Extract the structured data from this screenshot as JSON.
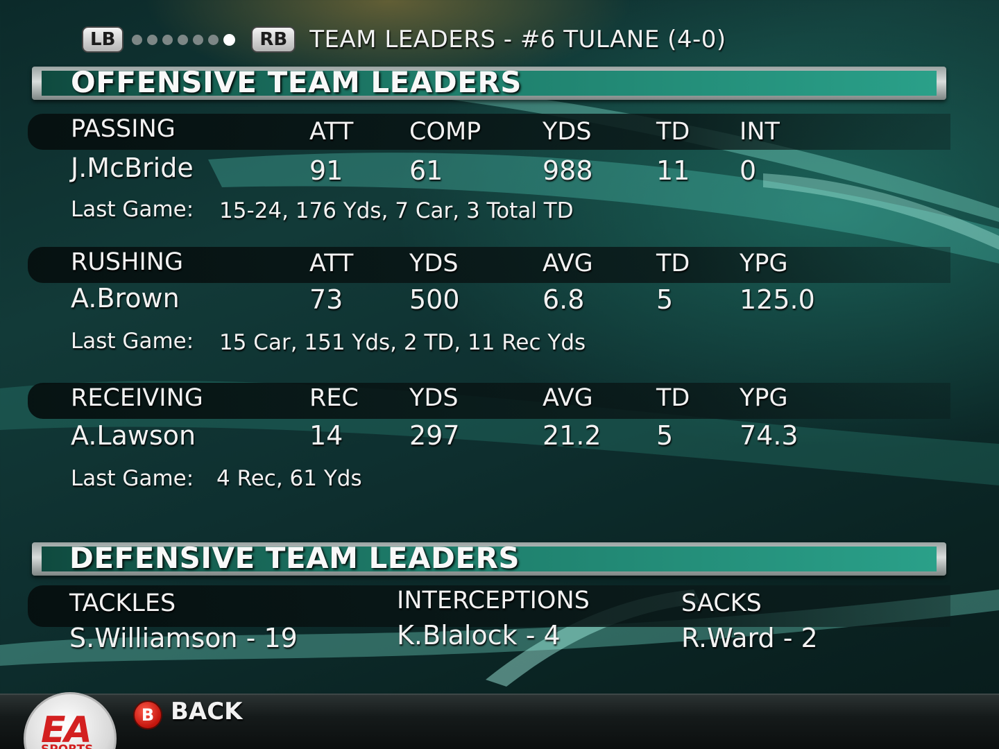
{
  "header": {
    "lb_label": "LB",
    "rb_label": "RB",
    "page_count": 7,
    "active_page": 7,
    "title": "TEAM LEADERS - #6 TULANE (4-0)"
  },
  "offense": {
    "section_title": "OFFENSIVE TEAM LEADERS",
    "passing": {
      "category": "PASSING",
      "columns": [
        "ATT",
        "COMP",
        "YDS",
        "TD",
        "INT"
      ],
      "player": "J.McBride",
      "values": [
        "91",
        "61",
        "988",
        "11",
        "0"
      ],
      "last_game_label": "Last Game:",
      "last_game": "15-24, 176 Yds, 7 Car,  3 Total TD"
    },
    "rushing": {
      "category": "RUSHING",
      "columns": [
        "ATT",
        "YDS",
        "AVG",
        "TD",
        "YPG"
      ],
      "player": "A.Brown",
      "values": [
        "73",
        "500",
        "6.8",
        "5",
        "125.0"
      ],
      "last_game_label": "Last Game:",
      "last_game": "15 Car, 151 Yds, 2 TD,  11 Rec Yds"
    },
    "receiving": {
      "category": "RECEIVING",
      "columns": [
        "REC",
        "YDS",
        "AVG",
        "TD",
        "YPG"
      ],
      "player": "A.Lawson",
      "values": [
        "14",
        "297",
        "21.2",
        "5",
        "74.3"
      ],
      "last_game_label": "Last Game:",
      "last_game": "4 Rec, 61 Yds"
    }
  },
  "defense": {
    "section_title": "DEFENSIVE TEAM LEADERS",
    "tackles": {
      "label": "TACKLES",
      "leader": "S.Williamson - 19"
    },
    "interceptions": {
      "label": "INTERCEPTIONS",
      "leader": "K.Blalock - 4"
    },
    "sacks": {
      "label": "SACKS",
      "leader": "R.Ward - 2"
    }
  },
  "footer": {
    "back_button_glyph": "B",
    "back_label": "BACK",
    "logo_text": "EA",
    "logo_subtext": "SPORTS"
  },
  "colors": {
    "accent_teal": "#2aa089",
    "back_button_red": "#c2140c"
  }
}
